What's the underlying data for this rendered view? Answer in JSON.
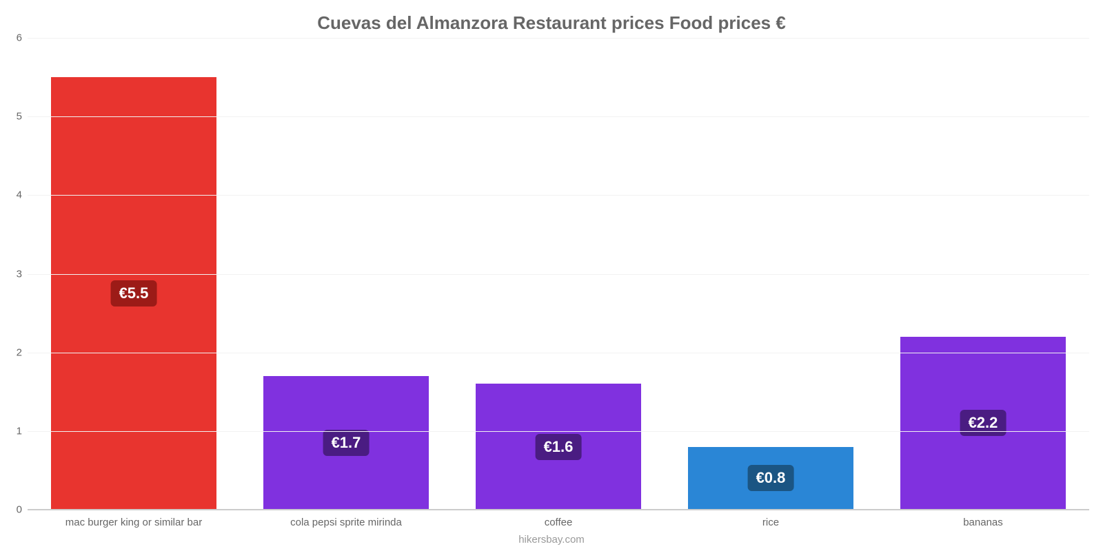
{
  "chart": {
    "type": "bar",
    "title": "Cuevas del Almanzora Restaurant prices Food prices €",
    "title_fontsize": 26,
    "title_color": "#666666",
    "source": "hikersbay.com",
    "source_fontsize": 15,
    "source_color": "#999999",
    "background_color": "#ffffff",
    "grid_color": "#f2f2f2",
    "axis_line_color": "#cccccc",
    "tick_label_color": "#666666",
    "tick_fontsize": 15,
    "xlabel_fontsize": 15,
    "ylim": [
      0,
      6
    ],
    "yticks": [
      0,
      1,
      2,
      3,
      4,
      5,
      6
    ],
    "bar_width": 0.78,
    "categories": [
      "mac burger king or similar bar",
      "cola pepsi sprite mirinda",
      "coffee",
      "rice",
      "bananas"
    ],
    "values": [
      5.5,
      1.7,
      1.6,
      0.8,
      2.2
    ],
    "value_labels": [
      "€5.5",
      "€1.7",
      "€1.6",
      "€0.8",
      "€2.2"
    ],
    "bar_colors": [
      "#e8342f",
      "#8031df",
      "#8031df",
      "#2a86d6",
      "#8031df"
    ],
    "badge_colors": [
      "#9c1b17",
      "#4a1c82",
      "#4a1c82",
      "#1b5583",
      "#4a1c82"
    ],
    "badge_fontsize": 22,
    "badge_text_color": "#ffffff"
  }
}
